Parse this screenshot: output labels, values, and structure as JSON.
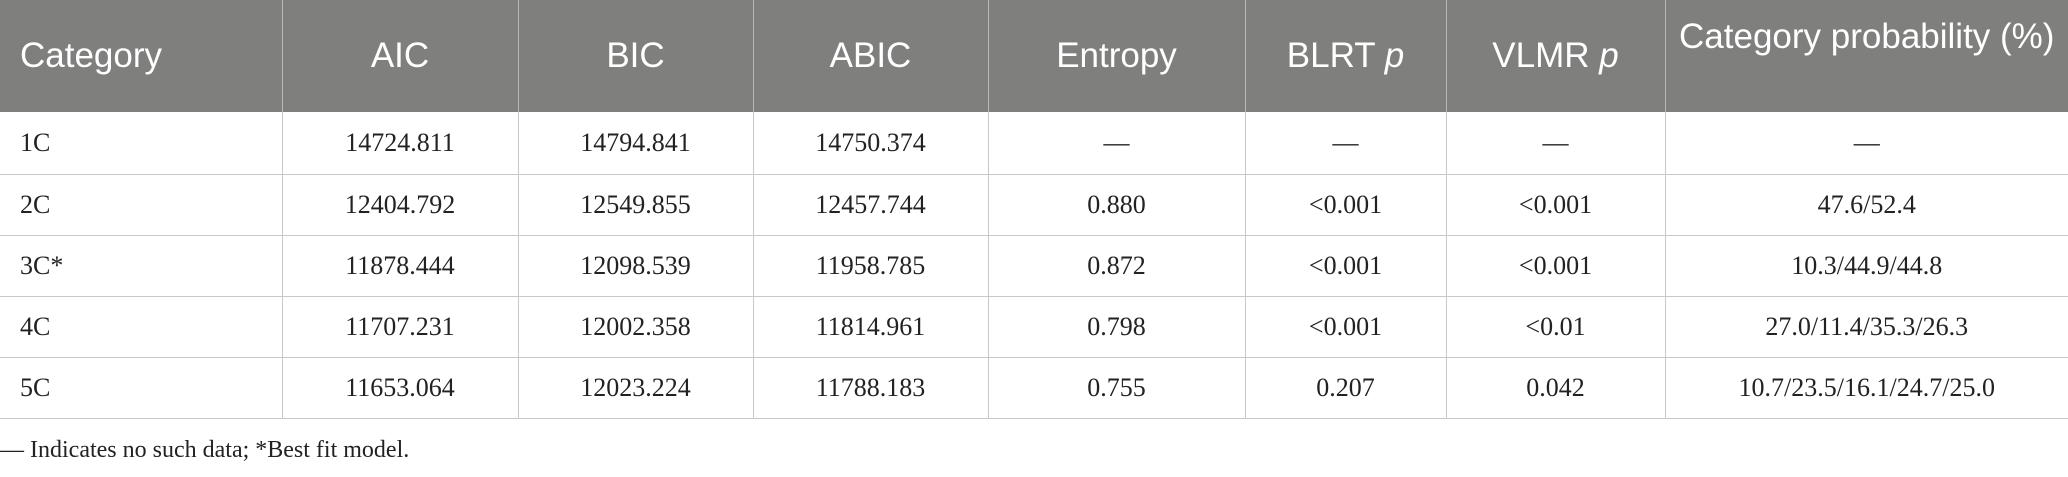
{
  "table": {
    "headers": [
      {
        "text": "Category",
        "italic": ""
      },
      {
        "text": "AIC",
        "italic": ""
      },
      {
        "text": "BIC",
        "italic": ""
      },
      {
        "text": "ABIC",
        "italic": ""
      },
      {
        "text": "Entropy",
        "italic": ""
      },
      {
        "text": "BLRT ",
        "italic": "p"
      },
      {
        "text": "VLMR ",
        "italic": "p"
      },
      {
        "text": "Category probability (%)",
        "italic": ""
      }
    ],
    "rows": [
      [
        "1C",
        "14724.811",
        "14794.841",
        "14750.374",
        "—",
        "—",
        "—",
        "—"
      ],
      [
        "2C",
        "12404.792",
        "12549.855",
        "12457.744",
        "0.880",
        "<0.001",
        "<0.001",
        "47.6/52.4"
      ],
      [
        "3C*",
        "11878.444",
        "12098.539",
        "11958.785",
        "0.872",
        "<0.001",
        "<0.001",
        "10.3/44.9/44.8"
      ],
      [
        "4C",
        "11707.231",
        "12002.358",
        "11814.961",
        "0.798",
        "<0.001",
        "<0.01",
        "27.0/11.4/35.3/26.3"
      ],
      [
        "5C",
        "11653.064",
        "12023.224",
        "11788.183",
        "0.755",
        "0.207",
        "0.042",
        "10.7/23.5/16.1/24.7/25.0"
      ]
    ]
  },
  "footnote": "— Indicates no such data; *Best fit model.",
  "colors": {
    "header_bg": "#7f7f7e",
    "header_text": "#ffffff",
    "rule": "#c8c8c8"
  }
}
